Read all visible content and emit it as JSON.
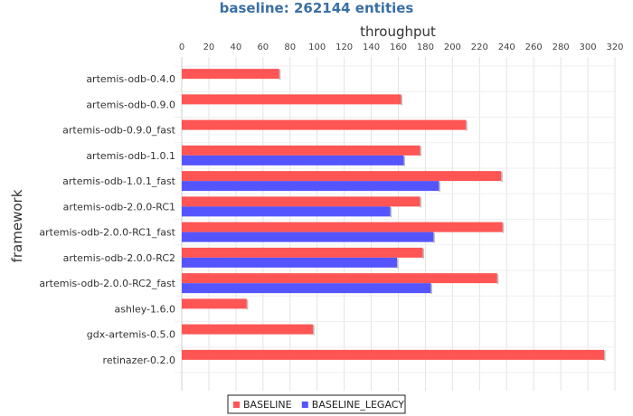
{
  "chart_data": {
    "type": "bar",
    "orientation": "horizontal",
    "title": "baseline: 262144 entities",
    "xlabel": "throughput",
    "ylabel": "framework",
    "xlim": [
      0,
      320
    ],
    "x_ticks": [
      "0",
      "20",
      "40",
      "60",
      "80",
      "100",
      "120",
      "140",
      "160",
      "180",
      "200",
      "220",
      "240",
      "260",
      "280",
      "300",
      "320"
    ],
    "x_axis_position": "top",
    "grid": true,
    "legend_position": "bottom",
    "categories": [
      "artemis-odb-0.4.0",
      "artemis-odb-0.9.0",
      "artemis-odb-0.9.0_fast",
      "artemis-odb-1.0.1",
      "artemis-odb-1.0.1_fast",
      "artemis-odb-2.0.0-RC1",
      "artemis-odb-2.0.0-RC1_fast",
      "artemis-odb-2.0.0-RC2",
      "artemis-odb-2.0.0-RC2_fast",
      "ashley-1.6.0",
      "gdx-artemis-0.5.0",
      "retinazer-0.2.0"
    ],
    "series": [
      {
        "name": "BASELINE",
        "color": "#ff5555",
        "values": [
          72,
          162,
          210,
          176,
          236,
          176,
          237,
          178,
          233,
          48,
          97,
          312
        ]
      },
      {
        "name": "BASELINE_LEGACY",
        "color": "#5555ff",
        "values": [
          null,
          null,
          null,
          164,
          190,
          154,
          186,
          159,
          184,
          null,
          null,
          null
        ]
      }
    ]
  }
}
